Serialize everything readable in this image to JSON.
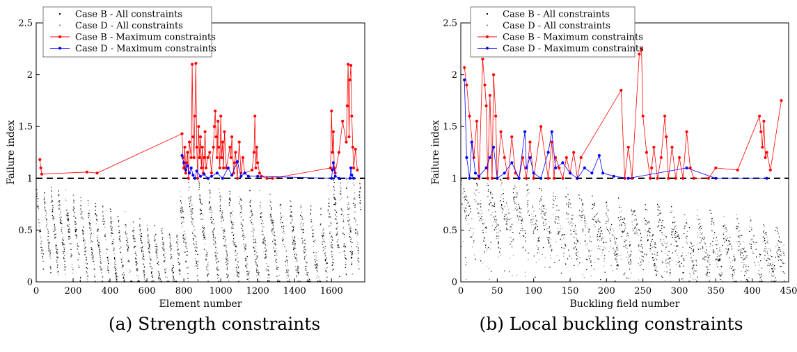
{
  "captions": [
    "(a) Strength constraints",
    "(b) Local buckling constraints"
  ],
  "colors": {
    "caseB_all": "#000000",
    "caseD_all": "#8c8c8c",
    "caseB_max": "#ff0000",
    "caseD_max": "#0000ff"
  },
  "chart_data": [
    {
      "type": "scatter",
      "title": "",
      "xlabel": "Element number",
      "ylabel": "Failure index",
      "xlim": [
        0,
        1780
      ],
      "ylim": [
        0,
        2.5
      ],
      "xticks": [
        0,
        200,
        400,
        600,
        800,
        1000,
        1200,
        1400,
        1600
      ],
      "yticks": [
        0,
        0.5,
        1,
        1.5,
        2,
        2.5
      ],
      "ytick_labels": [
        "0",
        "0.5",
        "1",
        "1.5",
        "2",
        "2.5"
      ],
      "grid": false,
      "legend": "top-left",
      "reference_line": {
        "y": 1,
        "style": "dashed"
      },
      "series": [
        {
          "name": "Case B - All constraints",
          "kind": "dots"
        },
        {
          "name": "Case D - All constraints",
          "kind": "dots"
        },
        {
          "name": "Case B - Maximum constraints",
          "kind": "line",
          "x": [
            20,
            25,
            30,
            275,
            330,
            790,
            795,
            800,
            805,
            810,
            815,
            820,
            825,
            830,
            840,
            845,
            850,
            855,
            860,
            865,
            870,
            875,
            880,
            885,
            890,
            895,
            900,
            905,
            910,
            915,
            920,
            930,
            940,
            950,
            960,
            965,
            970,
            975,
            980,
            985,
            990,
            995,
            1000,
            1005,
            1010,
            1015,
            1020,
            1030,
            1050,
            1055,
            1060,
            1070,
            1075,
            1080,
            1090,
            1100,
            1110,
            1120,
            1130,
            1170,
            1180,
            1185,
            1190,
            1195,
            1200,
            1210,
            1220,
            1250,
            1280,
            1595,
            1600,
            1605,
            1610,
            1615,
            1620,
            1640,
            1660,
            1680,
            1685,
            1690,
            1695,
            1700,
            1705,
            1710,
            1715,
            1720,
            1730,
            1740
          ],
          "y": [
            1.18,
            1.1,
            1.04,
            1.06,
            1.05,
            1.43,
            1.2,
            1.1,
            1.3,
            1.05,
            1.15,
            1.25,
            1.0,
            1.35,
            1.2,
            2.1,
            1.4,
            1.2,
            1.6,
            2.11,
            1.3,
            1.0,
            1.5,
            1.2,
            1.4,
            1.1,
            1.3,
            1.05,
            1.2,
            1.45,
            1.1,
            1.2,
            1.25,
            1.05,
            1.3,
            1.5,
            1.65,
            1.4,
            1.2,
            1.55,
            1.3,
            1.1,
            1.6,
            1.2,
            1.35,
            1.1,
            1.45,
            1.1,
            1.3,
            1.2,
            1.4,
            1.05,
            1.15,
            1.25,
            1.0,
            1.35,
            1.05,
            1.2,
            1.05,
            1.08,
            1.25,
            1.6,
            1.1,
            1.3,
            1.15,
            1.05,
            1.02,
            1.0,
            1.0,
            1.1,
            1.65,
            1.25,
            1.45,
            1.1,
            1.05,
            1.25,
            1.55,
            1.35,
            1.7,
            2.1,
            1.4,
            1.95,
            2.09,
            1.6,
            1.3,
            1.1,
            1.28,
            1.08
          ],
          "markers": true
        },
        {
          "name": "Case D - Maximum constraints",
          "kind": "line",
          "x": [
            790,
            800,
            810,
            820,
            830,
            840,
            850,
            860,
            870,
            890,
            910,
            930,
            950,
            980,
            1010,
            1040,
            1060,
            1090,
            1110,
            1130,
            1150,
            1200,
            1600,
            1605,
            1610,
            1620,
            1640,
            1700,
            1705,
            1710,
            1720
          ],
          "y": [
            1.22,
            1.15,
            1.08,
            1.12,
            1.05,
            1.1,
            1.03,
            1.0,
            1.07,
            1.02,
            1.04,
            1.0,
            1.02,
            1.05,
            1.0,
            1.1,
            1.03,
            1.16,
            1.02,
            1.05,
            1.02,
            1.02,
            1.0,
            1.08,
            1.15,
            1.02,
            1.0,
            1.0,
            1.1,
            1.03,
            1.0
          ],
          "markers": true
        }
      ]
    },
    {
      "type": "scatter",
      "title": "",
      "xlabel": "Buckling field number",
      "ylabel": "Failure index",
      "xlim": [
        0,
        450
      ],
      "ylim": [
        0,
        2.5
      ],
      "xticks": [
        0,
        50,
        100,
        150,
        200,
        250,
        300,
        350,
        400,
        450
      ],
      "yticks": [
        0,
        0.5,
        1,
        1.5,
        2,
        2.5
      ],
      "ytick_labels": [
        "0",
        "0.5",
        "1",
        "1.5",
        "2",
        "2.5"
      ],
      "grid": false,
      "legend": "top-center",
      "reference_line": {
        "y": 1,
        "style": "dashed"
      },
      "series": [
        {
          "name": "Case B - All constraints",
          "kind": "dots"
        },
        {
          "name": "Case D - All constraints",
          "kind": "dots"
        },
        {
          "name": "Case B - Maximum constraints",
          "kind": "line",
          "x": [
            5,
            8,
            12,
            18,
            22,
            25,
            30,
            33,
            35,
            37,
            40,
            43,
            45,
            48,
            50,
            55,
            60,
            65,
            70,
            75,
            80,
            85,
            90,
            95,
            100,
            110,
            120,
            125,
            128,
            130,
            135,
            140,
            145,
            150,
            155,
            160,
            165,
            220,
            225,
            230,
            235,
            245,
            248,
            250,
            255,
            260,
            262,
            265,
            270,
            275,
            280,
            282,
            285,
            290,
            295,
            300,
            305,
            310,
            315,
            320,
            340,
            350,
            380,
            410,
            412,
            414,
            416,
            418,
            420,
            425,
            440
          ],
          "y": [
            2.07,
            1.9,
            1.6,
            1.2,
            1.55,
            1.0,
            2.15,
            1.9,
            1.7,
            1.0,
            1.8,
            1.0,
            2.0,
            1.6,
            1.0,
            1.45,
            1.2,
            1.0,
            1.4,
            1.05,
            1.0,
            1.2,
            1.0,
            1.35,
            1.0,
            1.5,
            1.0,
            1.35,
            1.0,
            1.2,
            1.1,
            1.0,
            1.2,
            1.05,
            1.25,
            1.0,
            1.2,
            1.85,
            1.0,
            1.3,
            1.0,
            2.2,
            2.25,
            1.6,
            1.25,
            1.0,
            1.1,
            1.3,
            1.0,
            1.2,
            1.6,
            1.4,
            1.0,
            1.3,
            1.0,
            1.2,
            1.0,
            1.45,
            1.1,
            1.0,
            1.0,
            1.1,
            1.08,
            1.6,
            1.45,
            1.3,
            1.55,
            1.2,
            1.25,
            1.08,
            1.75
          ],
          "markers": true
        },
        {
          "name": "Case D - Maximum constraints",
          "kind": "line",
          "x": [
            5,
            8,
            12,
            15,
            20,
            25,
            35,
            40,
            45,
            50,
            60,
            70,
            80,
            88,
            90,
            95,
            100,
            110,
            120,
            125,
            130,
            140,
            150,
            160,
            170,
            180,
            190,
            195,
            210,
            230,
            310,
            350,
            420
          ],
          "y": [
            1.95,
            1.2,
            1.0,
            1.35,
            1.05,
            1.02,
            1.1,
            1.2,
            1.3,
            1.0,
            1.05,
            1.15,
            1.0,
            1.45,
            1.1,
            1.2,
            1.05,
            1.0,
            1.25,
            1.45,
            1.1,
            1.15,
            1.05,
            1.0,
            1.1,
            1.05,
            1.22,
            1.05,
            1.02,
            1.0,
            1.1,
            1.0,
            1.0
          ],
          "markers": true
        }
      ]
    }
  ]
}
